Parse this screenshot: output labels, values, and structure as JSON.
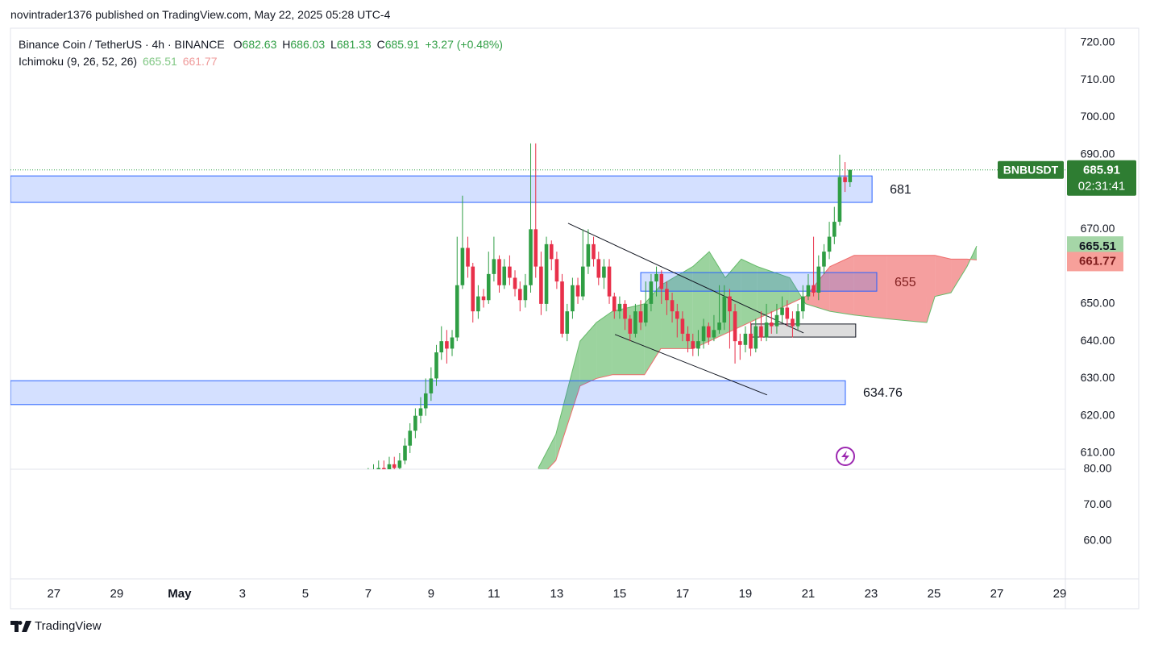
{
  "header": {
    "publisher": "novintrader1376 published on TradingView.com, May 22, 2025 05:28 UTC-4",
    "footer": "TradingView"
  },
  "chart_data": {
    "type": "candlestick",
    "title": "Binance Coin / TetherUS · 4h · BINANCE",
    "legend_labels": [
      "O",
      "H",
      "L",
      "C"
    ],
    "change": "+3.27 (+0.48%)",
    "symbol": "BNBUSDT",
    "countdown": "02:31:41",
    "up_color": "#2f9e44",
    "down_color": "#e8304a",
    "x": [
      10,
      10.17,
      10.33,
      10.5,
      10.67,
      10.83,
      11,
      11.17,
      11.33,
      11.5,
      11.67,
      11.83,
      12,
      12.17,
      12.33,
      12.5,
      12.67,
      12.83,
      13,
      13.17,
      13.33,
      13.5,
      13.67,
      13.83,
      14,
      14.17,
      14.33,
      14.5,
      14.67,
      14.83,
      15,
      15.17,
      15.33,
      15.5,
      15.67,
      15.83,
      16,
      16.17,
      16.33,
      16.5,
      16.67,
      16.83,
      17,
      17.17,
      17.33,
      17.5,
      17.67,
      17.83,
      18,
      18.17,
      18.33,
      18.5,
      18.67,
      18.83,
      19,
      19.17,
      19.33,
      19.5,
      19.67,
      19.83,
      20,
      20.17,
      20.33,
      20.5,
      20.67,
      20.83,
      21,
      21.17,
      21.33,
      21.5,
      21.67,
      21.83,
      22,
      22.17,
      22.33,
      22.5,
      22.67,
      22.83,
      23,
      23.17,
      23.33,
      23.5,
      23.67,
      23.83,
      24,
      24.17,
      24.33,
      24.5,
      24.67,
      24.83,
      25,
      25.17,
      25.33
    ],
    "open": [
      603,
      604,
      605,
      606,
      605,
      607,
      606,
      608,
      612,
      616,
      620,
      622,
      626,
      630,
      637,
      640,
      638,
      641,
      655,
      665,
      660,
      648,
      652,
      651,
      658,
      662,
      655,
      660,
      657,
      654,
      651,
      655,
      670,
      660,
      650,
      666,
      662,
      656,
      642,
      648,
      655,
      652,
      660,
      666,
      662,
      657,
      660,
      652,
      648,
      650,
      646,
      642,
      648,
      645,
      650,
      656,
      658,
      654,
      651,
      648,
      646,
      642,
      640,
      638,
      640,
      644,
      641,
      643,
      645,
      652,
      648,
      640,
      639,
      642,
      638,
      644,
      641,
      645,
      644,
      647,
      649,
      646,
      644,
      648,
      652,
      655,
      653,
      660,
      664,
      668,
      672,
      684,
      682.63
    ],
    "high": [
      606,
      607,
      608,
      608,
      609,
      609,
      610,
      614,
      618,
      622,
      625,
      630,
      633,
      639,
      644,
      643,
      643,
      668,
      679,
      668,
      661,
      655,
      654,
      664,
      668,
      663,
      662,
      663,
      659,
      656,
      658,
      693,
      693,
      664,
      668,
      667,
      664,
      658,
      650,
      657,
      657,
      670,
      670,
      668,
      664,
      662,
      662,
      653,
      652,
      651,
      647,
      650,
      651,
      656,
      658,
      660,
      659,
      656,
      653,
      650,
      648,
      644,
      642,
      643,
      646,
      645,
      647,
      655,
      655,
      654,
      650,
      642,
      644,
      645,
      646,
      648,
      650,
      648,
      650,
      652,
      651,
      648,
      650,
      655,
      658,
      668,
      663,
      666,
      672,
      676,
      690,
      688,
      686.03
    ],
    "low": [
      601,
      602,
      603,
      603,
      604,
      604,
      605,
      607,
      610,
      614,
      618,
      620,
      624,
      628,
      635,
      634,
      636,
      640,
      654,
      657,
      645,
      646,
      649,
      650,
      656,
      653,
      654,
      655,
      652,
      648,
      649,
      653,
      657,
      647,
      648,
      659,
      654,
      641,
      640,
      646,
      650,
      651,
      658,
      660,
      655,
      654,
      650,
      646,
      646,
      643,
      640,
      641,
      643,
      644,
      648,
      652,
      650,
      647,
      645,
      641,
      640,
      637,
      636,
      636,
      638,
      639,
      640,
      642,
      643,
      638,
      634,
      635,
      637,
      636,
      637,
      640,
      640,
      642,
      642,
      645,
      644,
      641,
      643,
      646,
      651,
      652,
      651,
      658,
      662,
      666,
      671,
      680,
      681.33
    ],
    "close": [
      604,
      605,
      606,
      605,
      607,
      606,
      608,
      612,
      616,
      620,
      622,
      626,
      630,
      637,
      640,
      638,
      641,
      655,
      665,
      660,
      648,
      652,
      651,
      658,
      662,
      655,
      660,
      657,
      654,
      651,
      655,
      670,
      660,
      650,
      666,
      662,
      656,
      642,
      648,
      655,
      652,
      660,
      666,
      662,
      657,
      660,
      652,
      648,
      650,
      646,
      642,
      648,
      645,
      650,
      656,
      658,
      654,
      651,
      648,
      646,
      642,
      640,
      638,
      640,
      644,
      641,
      643,
      645,
      652,
      648,
      640,
      639,
      642,
      638,
      644,
      641,
      645,
      644,
      647,
      649,
      646,
      644,
      648,
      652,
      655,
      653,
      660,
      664,
      668,
      672,
      684,
      682.63,
      685.91
    ],
    "xlim": [
      -1.38,
      32.18
    ],
    "xticks": [
      {
        "value": 0,
        "label": "27"
      },
      {
        "value": 2,
        "label": "29"
      },
      {
        "value": 4,
        "label": "May"
      },
      {
        "value": 6,
        "label": "3"
      },
      {
        "value": 8,
        "label": "5"
      },
      {
        "value": 10,
        "label": "7"
      },
      {
        "value": 12,
        "label": "9"
      },
      {
        "value": 14,
        "label": "11"
      },
      {
        "value": 16,
        "label": "13"
      },
      {
        "value": 18,
        "label": "15"
      },
      {
        "value": 20,
        "label": "17"
      },
      {
        "value": 22,
        "label": "19"
      },
      {
        "value": 24,
        "label": "21"
      },
      {
        "value": 26,
        "label": "23"
      },
      {
        "value": 28,
        "label": "25"
      },
      {
        "value": 30,
        "label": "27"
      },
      {
        "value": 32,
        "label": "29"
      }
    ],
    "ylim": [
      605.67,
      723.89
    ],
    "yticks": [
      {
        "value": 720,
        "label": "720.00"
      },
      {
        "value": 710,
        "label": "710.00"
      },
      {
        "value": 700,
        "label": "700.00"
      },
      {
        "value": 690,
        "label": "690.00"
      },
      {
        "value": 670,
        "label": "670.00"
      },
      {
        "value": 650,
        "label": "650.00"
      },
      {
        "value": 640,
        "label": "640.00"
      },
      {
        "value": 630,
        "label": "630.00"
      },
      {
        "value": 620,
        "label": "620.00"
      },
      {
        "value": 610,
        "label": "610.00"
      }
    ],
    "y2lim": [
      49.33,
      80
    ],
    "y2ticks": [
      {
        "value": 80,
        "label": "80.00"
      },
      {
        "value": 70,
        "label": "70.00"
      },
      {
        "value": 60,
        "label": "60.00"
      }
    ],
    "grid": false,
    "indicator": {
      "name": "Ichimoku (9, 26, 52, 26)",
      "span_a_color": "#66bb6a",
      "span_b_color": "#ef6c6c",
      "x": [
        15.41,
        15.97,
        16.74,
        17.26,
        17.77,
        18.79,
        19.31,
        20.33,
        20.85,
        21.36,
        21.87,
        22.38,
        23.41,
        23.92,
        24.69,
        25.46,
        26.49,
        27.77,
        28.03,
        28.54,
        29.05,
        29.36
      ],
      "span_a": [
        606,
        615,
        640,
        645,
        648,
        650,
        655,
        660,
        664,
        657,
        662,
        660,
        657,
        650,
        648,
        647,
        646,
        645,
        652,
        653,
        660,
        665.51
      ],
      "span_b": [
        603,
        608,
        628,
        630,
        631,
        631,
        638,
        638,
        640,
        642,
        644,
        646,
        650,
        652,
        660,
        663,
        663,
        663,
        663,
        662,
        662,
        661.77
      ]
    },
    "zones": [
      {
        "label": "681",
        "low": 677.2,
        "high": 684.3,
        "x": [
          -1.38,
          26.03
        ]
      },
      {
        "label": "655",
        "low": 653.4,
        "high": 658.4,
        "x": [
          18.67,
          26.18
        ]
      },
      {
        "label": "634.76",
        "low": 623,
        "high": 629.4,
        "x": [
          -1.38,
          25.18
        ]
      }
    ],
    "box": {
      "low": 641.1,
      "high": 644.6,
      "x": [
        22.18,
        25.51
      ]
    },
    "trendlines": [
      {
        "x": [
          16.36,
          23.85
        ],
        "y": [
          671.6,
          642.2
        ]
      },
      {
        "x": [
          17.85,
          22.69
        ],
        "y": [
          641.8,
          625.6
        ]
      }
    ]
  }
}
